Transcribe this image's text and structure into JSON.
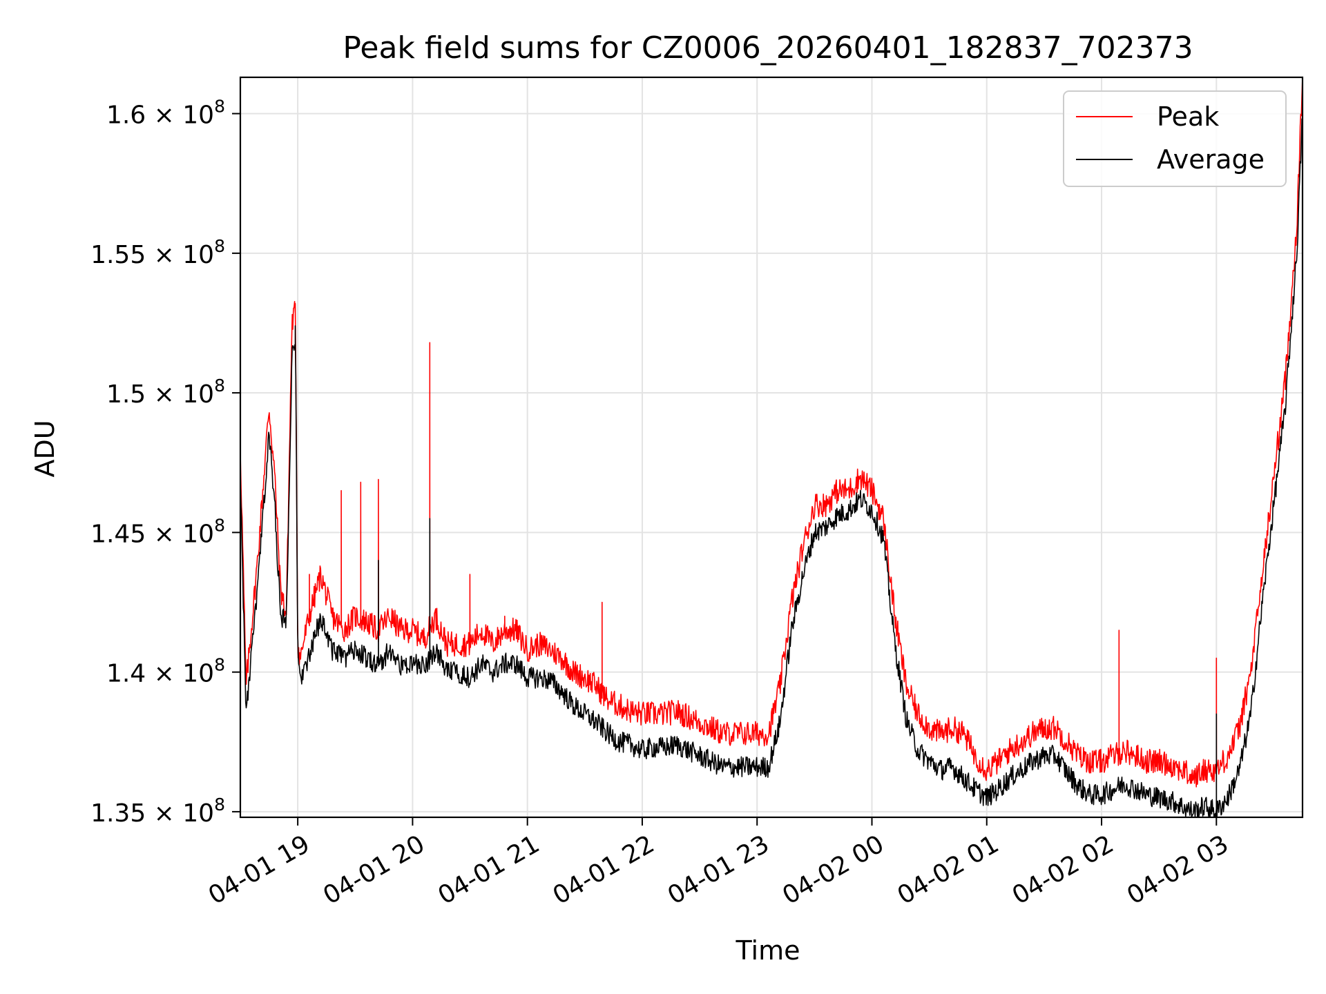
{
  "chart_data": {
    "type": "line",
    "title": "Peak field sums for CZ0006_20260401_182837_702373",
    "xlabel": "Time",
    "ylabel": "ADU",
    "x_unit": "hours since 04-01 18:30",
    "xlim": [
      0,
      9.25
    ],
    "ylim": [
      134.8,
      161.3
    ],
    "y_scale_label": "×10^8 (tick values shown ×10^6 here)",
    "grid": true,
    "legend_position": "top-right",
    "x_ticks": [
      {
        "value": 0.5,
        "label": "04-01 19"
      },
      {
        "value": 1.5,
        "label": "04-01 20"
      },
      {
        "value": 2.5,
        "label": "04-01 21"
      },
      {
        "value": 3.5,
        "label": "04-01 22"
      },
      {
        "value": 4.5,
        "label": "04-01 23"
      },
      {
        "value": 5.5,
        "label": "04-02 00"
      },
      {
        "value": 6.5,
        "label": "04-02 01"
      },
      {
        "value": 7.5,
        "label": "04-02 02"
      },
      {
        "value": 8.5,
        "label": "04-02 03"
      }
    ],
    "y_ticks": [
      {
        "value": 135,
        "mantissa": "1.35"
      },
      {
        "value": 140,
        "mantissa": "1.4"
      },
      {
        "value": 145,
        "mantissa": "1.45"
      },
      {
        "value": 150,
        "mantissa": "1.5"
      },
      {
        "value": 155,
        "mantissa": "1.55"
      },
      {
        "value": 160,
        "mantissa": "1.6"
      }
    ],
    "y_tick_base": "10",
    "y_tick_exp": "8",
    "series": [
      {
        "name": "Peak",
        "color": "#ff0000",
        "x": [
          0,
          0.05,
          0.15,
          0.25,
          0.3,
          0.35,
          0.4,
          0.45,
          0.48,
          0.5,
          0.52,
          0.6,
          0.7,
          0.8,
          0.9,
          1.0,
          1.1,
          1.2,
          1.3,
          1.4,
          1.5,
          1.6,
          1.7,
          1.8,
          1.9,
          2.0,
          2.1,
          2.2,
          2.3,
          2.4,
          2.5,
          2.6,
          2.7,
          2.8,
          2.9,
          3.0,
          3.1,
          3.2,
          3.3,
          3.4,
          3.5,
          3.6,
          3.7,
          3.8,
          3.9,
          4.0,
          4.1,
          4.2,
          4.3,
          4.4,
          4.5,
          4.6,
          4.7,
          4.8,
          4.9,
          5.0,
          5.1,
          5.2,
          5.3,
          5.4,
          5.5,
          5.6,
          5.7,
          5.8,
          5.9,
          6.0,
          6.1,
          6.2,
          6.3,
          6.4,
          6.5,
          6.6,
          6.7,
          6.8,
          6.9,
          7.0,
          7.1,
          7.2,
          7.3,
          7.4,
          7.5,
          7.6,
          7.7,
          7.8,
          7.9,
          8.0,
          8.1,
          8.2,
          8.3,
          8.4,
          8.5,
          8.6,
          8.7,
          8.8,
          8.9,
          9.0,
          9.1,
          9.2,
          9.25
        ],
        "y": [
          148.0,
          139.5,
          144.0,
          149.5,
          147.0,
          143.0,
          142.0,
          152.5,
          153.0,
          141.0,
          140.5,
          142.0,
          143.5,
          142.0,
          141.5,
          142.0,
          141.8,
          141.5,
          142.0,
          141.5,
          141.5,
          141.2,
          142.0,
          141.0,
          141.0,
          141.0,
          141.5,
          141.0,
          141.5,
          141.5,
          140.8,
          141.0,
          140.8,
          140.5,
          140.0,
          139.8,
          139.5,
          139.0,
          138.8,
          138.6,
          138.5,
          138.5,
          138.5,
          138.6,
          138.4,
          138.2,
          138.0,
          137.8,
          137.8,
          137.8,
          137.8,
          137.8,
          139.5,
          142.5,
          144.5,
          146.0,
          146.0,
          146.5,
          146.5,
          147.0,
          146.5,
          145.5,
          142.0,
          139.5,
          138.5,
          138.0,
          137.8,
          138.0,
          137.8,
          137.0,
          136.5,
          136.8,
          137.2,
          137.5,
          137.8,
          138.0,
          138.0,
          137.5,
          137.0,
          136.8,
          136.8,
          137.0,
          137.2,
          137.0,
          136.8,
          136.8,
          136.7,
          136.5,
          136.2,
          136.5,
          136.5,
          137.0,
          138.0,
          140.0,
          143.5,
          147.0,
          150.5,
          156.0,
          161.3
        ],
        "spikes": [
          [
            0.48,
            153.2
          ],
          [
            0.6,
            143.5
          ],
          [
            0.88,
            146.5
          ],
          [
            1.05,
            146.8
          ],
          [
            1.2,
            146.9
          ],
          [
            1.65,
            151.8
          ],
          [
            2.0,
            143.5
          ],
          [
            2.3,
            142.0
          ],
          [
            3.15,
            142.5
          ],
          [
            7.65,
            141.5
          ],
          [
            8.5,
            140.5
          ],
          [
            8.72,
            138.7
          ]
        ]
      },
      {
        "name": "Average",
        "color": "#000000",
        "x": [
          0,
          0.05,
          0.15,
          0.25,
          0.3,
          0.35,
          0.4,
          0.45,
          0.48,
          0.5,
          0.52,
          0.6,
          0.7,
          0.8,
          0.9,
          1.0,
          1.1,
          1.2,
          1.3,
          1.4,
          1.5,
          1.6,
          1.7,
          1.8,
          1.9,
          2.0,
          2.1,
          2.2,
          2.3,
          2.4,
          2.5,
          2.6,
          2.7,
          2.8,
          2.9,
          3.0,
          3.1,
          3.2,
          3.3,
          3.4,
          3.5,
          3.6,
          3.7,
          3.8,
          3.9,
          4.0,
          4.1,
          4.2,
          4.3,
          4.4,
          4.5,
          4.6,
          4.7,
          4.8,
          4.9,
          5.0,
          5.1,
          5.2,
          5.3,
          5.4,
          5.5,
          5.6,
          5.7,
          5.8,
          5.9,
          6.0,
          6.1,
          6.2,
          6.3,
          6.4,
          6.5,
          6.6,
          6.7,
          6.8,
          6.9,
          7.0,
          7.1,
          7.2,
          7.3,
          7.4,
          7.5,
          7.6,
          7.7,
          7.8,
          7.9,
          8.0,
          8.1,
          8.2,
          8.3,
          8.4,
          8.5,
          8.6,
          8.7,
          8.8,
          8.9,
          9.0,
          9.1,
          9.2,
          9.25
        ],
        "y": [
          147.0,
          138.5,
          143.0,
          148.5,
          146.0,
          142.0,
          141.8,
          151.5,
          152.0,
          140.5,
          139.8,
          140.5,
          142.0,
          140.8,
          140.5,
          140.8,
          140.5,
          140.2,
          140.8,
          140.2,
          140.3,
          140.2,
          140.8,
          140.0,
          140.0,
          139.8,
          140.3,
          140.0,
          140.3,
          140.3,
          139.8,
          139.8,
          139.7,
          139.3,
          138.8,
          138.5,
          138.2,
          137.8,
          137.5,
          137.4,
          137.2,
          137.3,
          137.3,
          137.4,
          137.2,
          137.0,
          136.8,
          136.6,
          136.6,
          136.6,
          136.6,
          136.6,
          138.2,
          141.5,
          143.5,
          145.0,
          145.2,
          145.6,
          145.8,
          146.2,
          145.8,
          144.8,
          141.0,
          138.3,
          137.2,
          136.8,
          136.5,
          136.6,
          136.2,
          135.8,
          135.5,
          135.8,
          136.2,
          136.5,
          136.8,
          137.0,
          137.0,
          136.4,
          135.9,
          135.6,
          135.6,
          135.8,
          136.0,
          135.8,
          135.6,
          135.5,
          135.4,
          135.2,
          135.0,
          135.2,
          135.0,
          135.5,
          136.5,
          138.5,
          142.5,
          146.0,
          149.5,
          155.0,
          160.0
        ],
        "spikes": [
          [
            0.48,
            152.4
          ],
          [
            0.65,
            141.5
          ],
          [
            1.2,
            144.0
          ],
          [
            1.65,
            145.5
          ],
          [
            8.5,
            138.5
          ]
        ]
      }
    ]
  }
}
